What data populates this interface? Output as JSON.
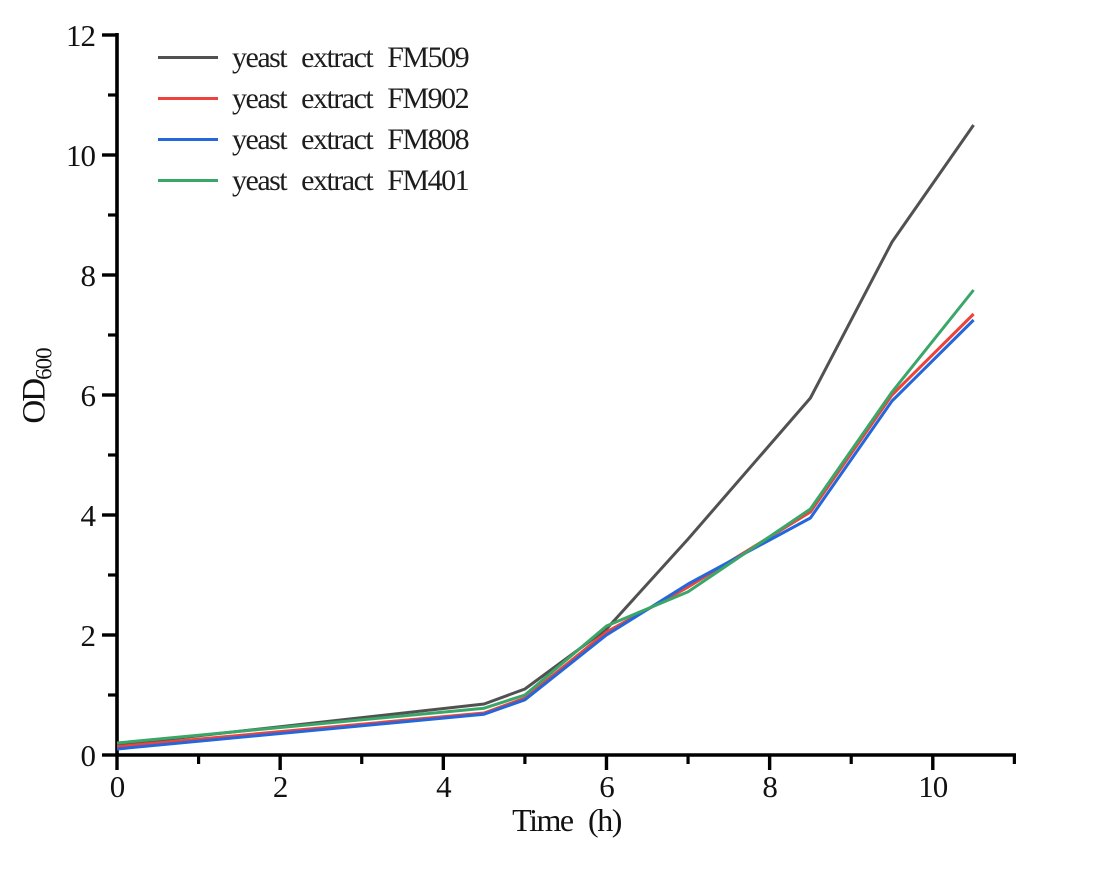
{
  "figure": {
    "background": "#ffffff",
    "axis_color": "#000000",
    "text_color": "#111111"
  },
  "chart_data": {
    "type": "line",
    "title": "",
    "xlabel": "Time (h)",
    "ylabel": "OD",
    "ylabel_subscript": "600",
    "xlim": [
      0,
      11.02
    ],
    "ylim": [
      0,
      12
    ],
    "grid": false,
    "legend_position": "top-left",
    "x_major_ticks": [
      0,
      2,
      4,
      6,
      8,
      10
    ],
    "x_minor_ticks": [
      1,
      3,
      5,
      7,
      9,
      11
    ],
    "y_major_ticks": [
      0,
      2,
      4,
      6,
      8,
      10,
      12
    ],
    "y_minor_ticks": [
      1,
      3,
      5,
      7,
      9,
      11
    ],
    "x": [
      0,
      4.5,
      5,
      6,
      7,
      8.5,
      9.5,
      10.5
    ],
    "series": [
      {
        "name": "yeast extract FM509",
        "short": "FM509",
        "color": "#515151",
        "values": [
          0.17,
          0.85,
          1.1,
          2.1,
          3.6,
          5.95,
          8.55,
          10.5
        ]
      },
      {
        "name": "yeast extract FM902",
        "short": "FM902",
        "color": "#ee433d",
        "values": [
          0.14,
          0.7,
          0.95,
          2.05,
          2.8,
          4.05,
          6.0,
          7.35
        ]
      },
      {
        "name": "yeast extract FM808",
        "short": "FM808",
        "color": "#2467db",
        "values": [
          0.1,
          0.68,
          0.92,
          2.0,
          2.85,
          3.95,
          5.9,
          7.25
        ]
      },
      {
        "name": "yeast extract FM401",
        "short": "FM401",
        "color": "#3aa768",
        "values": [
          0.2,
          0.78,
          1.0,
          2.15,
          2.72,
          4.1,
          6.05,
          7.75
        ]
      }
    ]
  }
}
